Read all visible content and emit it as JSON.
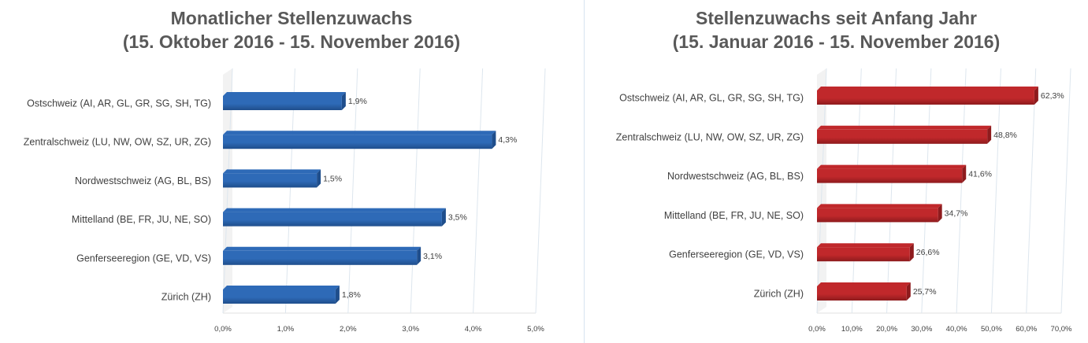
{
  "chart_data": [
    {
      "type": "bar",
      "orientation": "horizontal",
      "title": [
        "Monatlicher Stellenzuwachs",
        "(15. Oktober 2016 - 15. November 2016)"
      ],
      "categories": [
        "Ostschweiz (AI, AR, GL, GR, SG, SH, TG)",
        "Zentralschweiz (LU, NW, OW, SZ, UR, ZG)",
        "Nordwestschweiz (AG, BL, BS)",
        "Mittelland (BE, FR, JU, NE, SO)",
        "Genferseeregion (GE, VD, VS)",
        "Zürich (ZH)"
      ],
      "values": [
        1.9,
        4.3,
        1.5,
        3.5,
        3.1,
        1.8
      ],
      "value_labels": [
        "1,9%",
        "4,3%",
        "1,5%",
        "3,5%",
        "3,1%",
        "1,8%"
      ],
      "xlim": [
        0,
        5
      ],
      "xticks": [
        0,
        1,
        2,
        3,
        4,
        5
      ],
      "xtick_labels": [
        "0,0%",
        "1,0%",
        "2,0%",
        "3,0%",
        "4,0%",
        "5,0%"
      ],
      "color": "#2e6ab7",
      "color_dark": "#1f4e8c",
      "grid": true
    },
    {
      "type": "bar",
      "orientation": "horizontal",
      "title": [
        "Stellenzuwachs seit Anfang Jahr",
        "(15. Januar 2016 - 15. November 2016)"
      ],
      "categories": [
        "Ostschweiz (AI, AR, GL, GR, SG, SH, TG)",
        "Zentralschweiz (LU, NW, OW, SZ, UR, ZG)",
        "Nordwestschweiz (AG, BL, BS)",
        "Mittelland (BE, FR, JU, NE, SO)",
        "Genferseeregion (GE, VD, VS)",
        "Zürich (ZH)"
      ],
      "values": [
        62.3,
        48.8,
        41.6,
        34.7,
        26.6,
        25.7
      ],
      "value_labels": [
        "62,3%",
        "48,8%",
        "41,6%",
        "34,7%",
        "26,6%",
        "25,7%"
      ],
      "xlim": [
        0,
        70
      ],
      "xticks": [
        0,
        10,
        20,
        30,
        40,
        50,
        60,
        70
      ],
      "xtick_labels": [
        "0,0%",
        "10,0%",
        "20,0%",
        "30,0%",
        "40,0%",
        "50,0%",
        "60,0%",
        "70,0%"
      ],
      "color": "#c0282b",
      "color_dark": "#8e1b1d",
      "grid": true
    }
  ]
}
